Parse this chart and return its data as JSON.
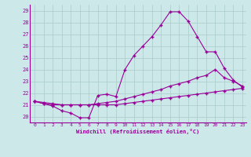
{
  "xlabel": "Windchill (Refroidissement éolien,°C)",
  "bg_color": "#cce8e8",
  "line_color": "#990099",
  "grid_color": "#aacccc",
  "xlim": [
    -0.5,
    23.4
  ],
  "ylim": [
    19.5,
    29.5
  ],
  "yticks": [
    20,
    21,
    22,
    23,
    24,
    25,
    26,
    27,
    28,
    29
  ],
  "xticks": [
    0,
    1,
    2,
    3,
    4,
    5,
    6,
    7,
    8,
    9,
    10,
    11,
    12,
    13,
    14,
    15,
    16,
    17,
    18,
    19,
    20,
    21,
    22,
    23
  ],
  "line1_x": [
    0,
    1,
    2,
    3,
    4,
    5,
    6,
    7,
    8,
    9,
    10,
    11,
    12,
    13,
    14,
    15,
    16,
    17,
    18,
    19,
    20,
    21,
    22,
    23
  ],
  "line1_y": [
    21.3,
    21.1,
    20.9,
    20.5,
    20.3,
    19.9,
    19.9,
    21.8,
    21.9,
    21.7,
    24.0,
    25.2,
    26.0,
    26.8,
    27.8,
    28.9,
    28.9,
    28.1,
    26.8,
    25.5,
    25.5,
    24.1,
    23.1,
    22.5
  ],
  "line2_x": [
    0,
    1,
    2,
    3,
    4,
    5,
    6,
    7,
    8,
    9,
    10,
    11,
    12,
    13,
    14,
    15,
    16,
    17,
    18,
    19,
    20,
    21,
    22,
    23
  ],
  "line2_y": [
    21.3,
    21.2,
    21.1,
    21.0,
    21.0,
    21.0,
    21.0,
    21.1,
    21.2,
    21.3,
    21.5,
    21.7,
    21.9,
    22.1,
    22.3,
    22.6,
    22.8,
    23.0,
    23.3,
    23.5,
    24.0,
    23.3,
    23.0,
    22.6
  ],
  "line3_x": [
    0,
    1,
    2,
    3,
    4,
    5,
    6,
    7,
    8,
    9,
    10,
    11,
    12,
    13,
    14,
    15,
    16,
    17,
    18,
    19,
    20,
    21,
    22,
    23
  ],
  "line3_y": [
    21.3,
    21.1,
    21.0,
    21.0,
    21.0,
    21.0,
    21.0,
    21.0,
    21.0,
    21.0,
    21.1,
    21.2,
    21.3,
    21.4,
    21.5,
    21.6,
    21.7,
    21.8,
    21.9,
    22.0,
    22.1,
    22.2,
    22.3,
    22.4
  ]
}
